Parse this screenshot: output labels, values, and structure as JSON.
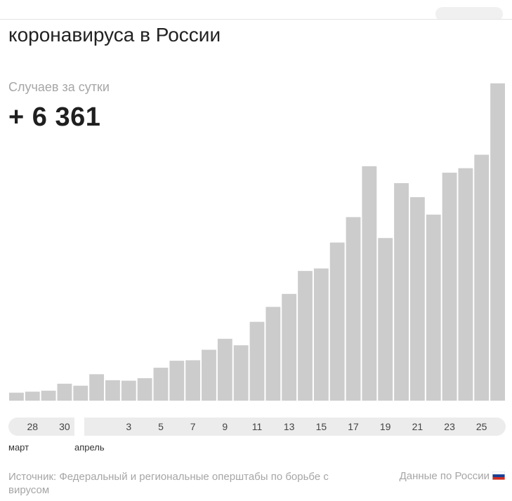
{
  "header": {
    "title": "коронавируса в России"
  },
  "metric": {
    "label": "Случаев за сутки",
    "value": "+ 6 361"
  },
  "chart_data": {
    "type": "bar",
    "categories": [
      "27",
      "28",
      "29",
      "30",
      "31",
      "1",
      "2",
      "3",
      "4",
      "5",
      "6",
      "7",
      "8",
      "9",
      "10",
      "11",
      "12",
      "13",
      "14",
      "15",
      "16",
      "17",
      "18",
      "19",
      "20",
      "21",
      "22",
      "23",
      "24",
      "25",
      "26"
    ],
    "values": [
      160,
      180,
      200,
      340,
      300,
      530,
      410,
      400,
      450,
      660,
      800,
      810,
      1020,
      1240,
      1110,
      1580,
      1880,
      2140,
      2600,
      2650,
      3170,
      3680,
      4700,
      3260,
      4360,
      4080,
      3730,
      4570,
      4660,
      4930,
      6361
    ],
    "ylim": [
      0,
      6400
    ],
    "tick_labels": [
      "28",
      "30",
      "3",
      "5",
      "7",
      "9",
      "11",
      "13",
      "15",
      "17",
      "19",
      "21",
      "23",
      "25"
    ],
    "month_labels": [
      "март",
      "апрель"
    ],
    "bar_color": "#cccccc"
  },
  "footer": {
    "source": "Источник: Федеральный и региональные оперштабы по борьбе с вирусом",
    "data_link": "Данные по России"
  },
  "flag": {
    "icon": "russia-flag-icon",
    "colors": [
      "#ffffff",
      "#1c3f94",
      "#d52b1e"
    ]
  }
}
